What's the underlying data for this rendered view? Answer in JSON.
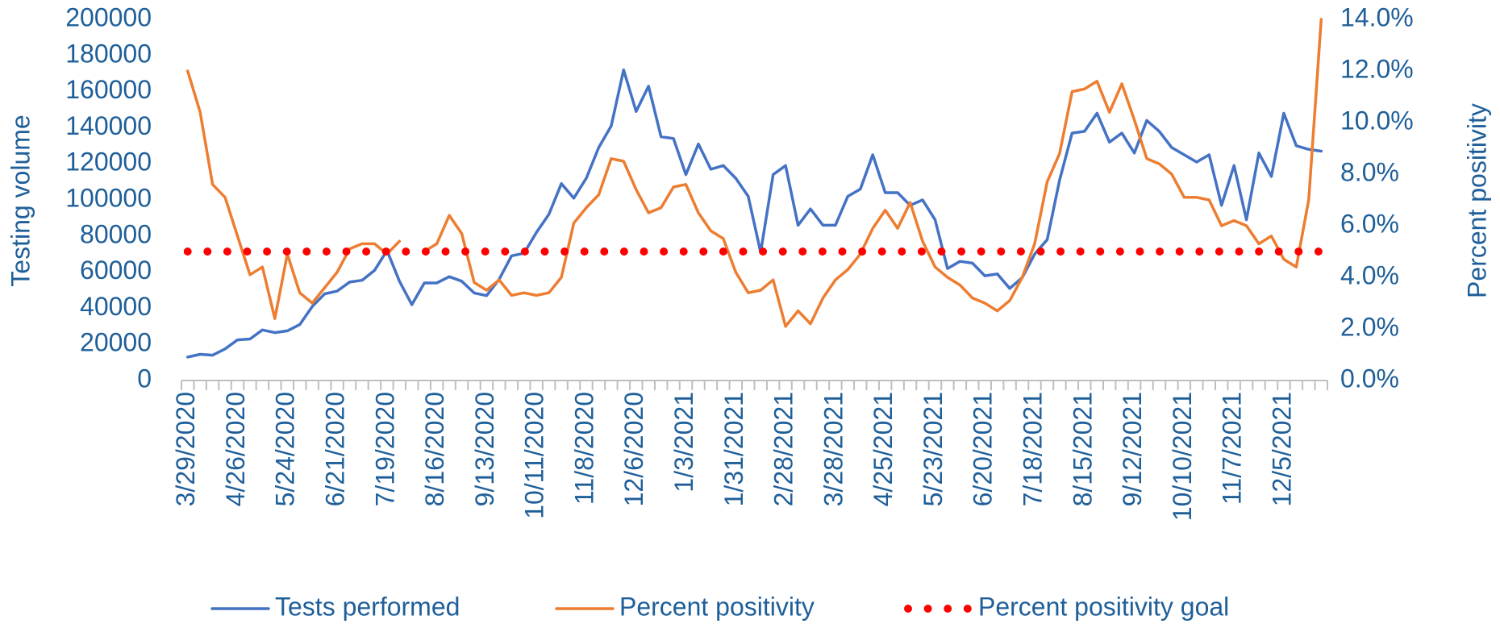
{
  "chart_data": {
    "type": "line",
    "ylabel": "Testing volume",
    "y2label": "Percent positivity",
    "categories": [
      "3/29/2020",
      null,
      null,
      null,
      "4/26/2020",
      null,
      null,
      null,
      "5/24/2020",
      null,
      null,
      null,
      "6/21/2020",
      null,
      null,
      null,
      "7/19/2020",
      null,
      null,
      null,
      "8/16/2020",
      null,
      null,
      null,
      "9/13/2020",
      null,
      null,
      null,
      "10/11/2020",
      null,
      null,
      null,
      "11/8/2020",
      null,
      null,
      null,
      "12/6/2020",
      null,
      null,
      null,
      "1/3/2021",
      null,
      null,
      null,
      "1/31/2021",
      null,
      null,
      null,
      "2/28/2021",
      null,
      null,
      null,
      "3/28/2021",
      null,
      null,
      null,
      "4/25/2021",
      null,
      null,
      null,
      "5/23/2021",
      null,
      null,
      null,
      "6/20/2021",
      null,
      null,
      null,
      "7/18/2021",
      null,
      null,
      null,
      "8/15/2021",
      null,
      null,
      null,
      "9/12/2021",
      null,
      null,
      null,
      "10/10/2021",
      null,
      null,
      null,
      "11/7/2021",
      null,
      null,
      null,
      "12/5/2021",
      null,
      null,
      null
    ],
    "series": [
      {
        "name": "Tests performed",
        "color": "#4472c4",
        "axis": "y",
        "dash": "solid",
        "values": [
          13000,
          14500,
          14000,
          17500,
          22500,
          23000,
          28000,
          26500,
          27500,
          31000,
          41000,
          48000,
          49500,
          54500,
          55500,
          61000,
          72000,
          55000,
          42000,
          54000,
          54000,
          57500,
          55000,
          48500,
          47000,
          56000,
          69000,
          70500,
          82000,
          92000,
          109000,
          101000,
          112000,
          129000,
          141000,
          172000,
          149000,
          163000,
          135000,
          134000,
          114000,
          131000,
          117000,
          119000,
          112000,
          102000,
          71000,
          114000,
          119000,
          86000,
          95000,
          86000,
          86000,
          102000,
          106000,
          125000,
          104000,
          104000,
          97000,
          100000,
          89000,
          62000,
          66000,
          65000,
          58000,
          59000,
          51000,
          57000,
          70000,
          78000,
          111000,
          137000,
          138000,
          148000,
          132000,
          137000,
          126000,
          144000,
          138000,
          129000,
          125000,
          121000,
          125000,
          97000,
          119000,
          89000,
          126000,
          113000,
          148000,
          130000,
          128000,
          127000
        ]
      },
      {
        "name": "Percent positivity",
        "color": "#ed7d31",
        "axis": "y2",
        "dash": "solid",
        "values": [
          12.0,
          10.4,
          7.6,
          7.1,
          5.6,
          4.1,
          4.4,
          2.4,
          4.9,
          3.4,
          3.0,
          3.6,
          4.2,
          5.1,
          5.3,
          5.3,
          4.9,
          5.4,
          null,
          5.0,
          5.3,
          6.4,
          5.7,
          3.8,
          3.5,
          3.9,
          3.3,
          3.4,
          3.3,
          3.4,
          4.0,
          6.1,
          6.7,
          7.2,
          8.6,
          8.5,
          7.4,
          6.5,
          6.7,
          7.5,
          7.6,
          6.5,
          5.8,
          5.5,
          4.2,
          3.4,
          3.5,
          3.9,
          2.1,
          2.7,
          2.2,
          3.2,
          3.9,
          4.3,
          4.9,
          5.9,
          6.6,
          5.9,
          6.9,
          5.4,
          4.4,
          4.0,
          3.7,
          3.2,
          3.0,
          2.7,
          3.1,
          4.0,
          5.3,
          7.7,
          8.8,
          11.2,
          11.3,
          11.6,
          10.4,
          11.5,
          10.1,
          8.6,
          8.4,
          8.0,
          7.1,
          7.1,
          7.0,
          6.0,
          6.2,
          6.0,
          5.3,
          5.6,
          4.7,
          4.4,
          7.0,
          14.0
        ]
      },
      {
        "name": "Percent positivity goal",
        "color": "#ff0000",
        "axis": "y2",
        "dash": "dotted",
        "values": [
          5,
          5,
          5,
          5,
          5,
          5,
          5,
          5,
          5,
          5,
          5,
          5,
          5,
          5,
          5,
          5,
          5,
          5,
          5,
          5,
          5,
          5,
          5,
          5,
          5,
          5,
          5,
          5,
          5,
          5,
          5,
          5,
          5,
          5,
          5,
          5,
          5,
          5,
          5,
          5,
          5,
          5,
          5,
          5,
          5,
          5,
          5,
          5,
          5,
          5,
          5,
          5,
          5,
          5,
          5,
          5,
          5,
          5,
          5,
          5,
          5,
          5,
          5,
          5,
          5,
          5,
          5,
          5,
          5,
          5,
          5,
          5,
          5,
          5,
          5,
          5,
          5,
          5,
          5,
          5,
          5,
          5,
          5,
          5,
          5,
          5,
          5,
          5,
          5,
          5,
          5,
          5
        ]
      }
    ],
    "ylim": [
      0,
      200000
    ],
    "yticks": [
      0,
      20000,
      40000,
      60000,
      80000,
      100000,
      120000,
      140000,
      160000,
      180000,
      200000
    ],
    "y2lim": [
      0,
      14
    ],
    "y2ticks": [
      {
        "value": 0,
        "label": "0.0%"
      },
      {
        "value": 2,
        "label": "2.0%"
      },
      {
        "value": 4,
        "label": "4.0%"
      },
      {
        "value": 6,
        "label": "6.0%"
      },
      {
        "value": 8,
        "label": "8.0%"
      },
      {
        "value": 10,
        "label": "10.0%"
      },
      {
        "value": 12,
        "label": "12.0%"
      },
      {
        "value": 14,
        "label": "14.0%"
      }
    ],
    "grid": false,
    "legend": "bottom"
  }
}
